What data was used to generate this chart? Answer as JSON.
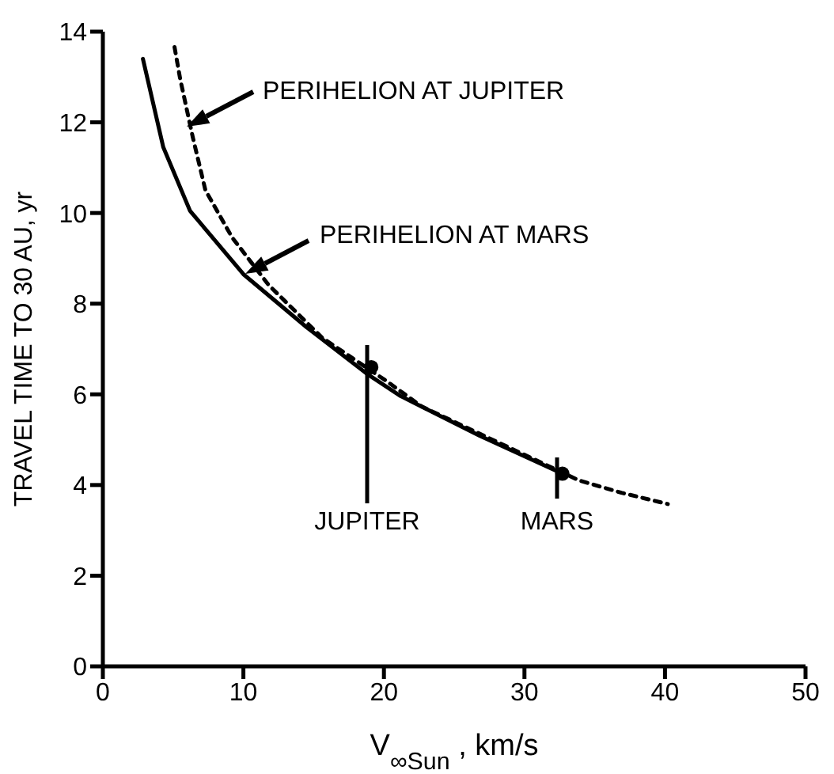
{
  "chart_data": {
    "type": "line",
    "xlabel": "V$_{∞Sun}$ , km/s",
    "ylabel": "TRAVEL TIME TO 30 AU, yr",
    "xlim": [
      0,
      50
    ],
    "xticks": [
      0,
      10,
      20,
      30,
      40,
      50
    ],
    "ylim": [
      0,
      14
    ],
    "yticks": [
      0,
      2,
      4,
      6,
      8,
      10,
      12,
      14
    ],
    "grid": false,
    "marker": "none",
    "series": [
      {
        "color": "#000000",
        "line_style": "solid",
        "x": [
          2.85,
          4.3,
          6.2,
          10,
          14.5,
          18.9,
          21.2,
          26.8,
          32.7
        ],
        "values": [
          13.4,
          11.45,
          10.05,
          8.65,
          7.48,
          6.43,
          5.96,
          5.09,
          4.25
        ]
      },
      {
        "color": "#000000",
        "line_style": "dotted",
        "x": [
          5.1,
          5.5,
          6.4,
          7.3,
          9.2,
          11.8,
          15.6,
          20.1,
          22.7,
          33.9,
          36.9,
          40.2
        ],
        "values": [
          13.66,
          12.96,
          11.67,
          10.5,
          9.46,
          8.41,
          7.25,
          6.31,
          5.73,
          4.1,
          3.83,
          3.58
        ]
      },
      {
        "type": "scatter",
        "color": "#000000",
        "marker": "circle",
        "x": [
          19.1,
          32.7
        ],
        "values": [
          6.6,
          4.25
        ]
      }
    ],
    "annotations": [
      "PERIHELION AT JUPITER",
      "PERIHELION AT MARS",
      "JUPITER",
      "MARS"
    ]
  }
}
